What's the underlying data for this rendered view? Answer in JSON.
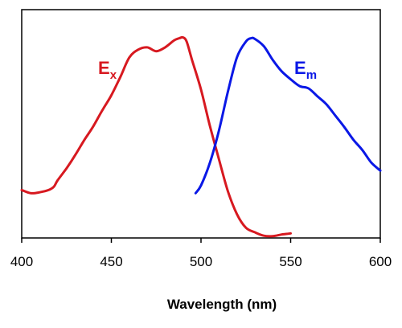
{
  "chart_data": {
    "type": "line",
    "xlabel": "Wavelength (nm)",
    "ylabel": "",
    "xlim": [
      400,
      600
    ],
    "ylim": [
      0,
      1
    ],
    "x_ticks": [
      400,
      450,
      500,
      550,
      600
    ],
    "x_tick_labels": [
      "400",
      "450",
      "500",
      "550",
      "600"
    ],
    "y_tick_labels": [],
    "grid": false,
    "series": [
      {
        "name": "Ex",
        "label_main": "E",
        "label_sub": "x",
        "color": "#d71920",
        "x": [
          400,
          405,
          410,
          415,
          418,
          420,
          425,
          430,
          435,
          440,
          445,
          450,
          455,
          460,
          465,
          470,
          475,
          480,
          485,
          488,
          490,
          492,
          495,
          500,
          505,
          510,
          515,
          520,
          525,
          530,
          535,
          540,
          545,
          550
        ],
        "y": [
          0.21,
          0.196,
          0.2,
          0.21,
          0.225,
          0.252,
          0.305,
          0.365,
          0.43,
          0.49,
          0.56,
          0.625,
          0.705,
          0.79,
          0.825,
          0.835,
          0.818,
          0.835,
          0.865,
          0.875,
          0.878,
          0.86,
          0.78,
          0.65,
          0.49,
          0.345,
          0.205,
          0.105,
          0.045,
          0.025,
          0.01,
          0.008,
          0.015,
          0.02
        ]
      },
      {
        "name": "Em",
        "label_main": "E",
        "label_sub": "m",
        "color": "#0a18e6",
        "x": [
          497,
          500,
          505,
          510,
          515,
          520,
          525,
          528,
          530,
          535,
          540,
          545,
          550,
          555,
          560,
          565,
          570,
          575,
          580,
          585,
          590,
          595,
          600
        ],
        "y": [
          0.196,
          0.23,
          0.33,
          0.47,
          0.64,
          0.79,
          0.86,
          0.875,
          0.872,
          0.84,
          0.78,
          0.73,
          0.695,
          0.665,
          0.655,
          0.62,
          0.585,
          0.535,
          0.485,
          0.43,
          0.385,
          0.33,
          0.295
        ]
      }
    ]
  }
}
